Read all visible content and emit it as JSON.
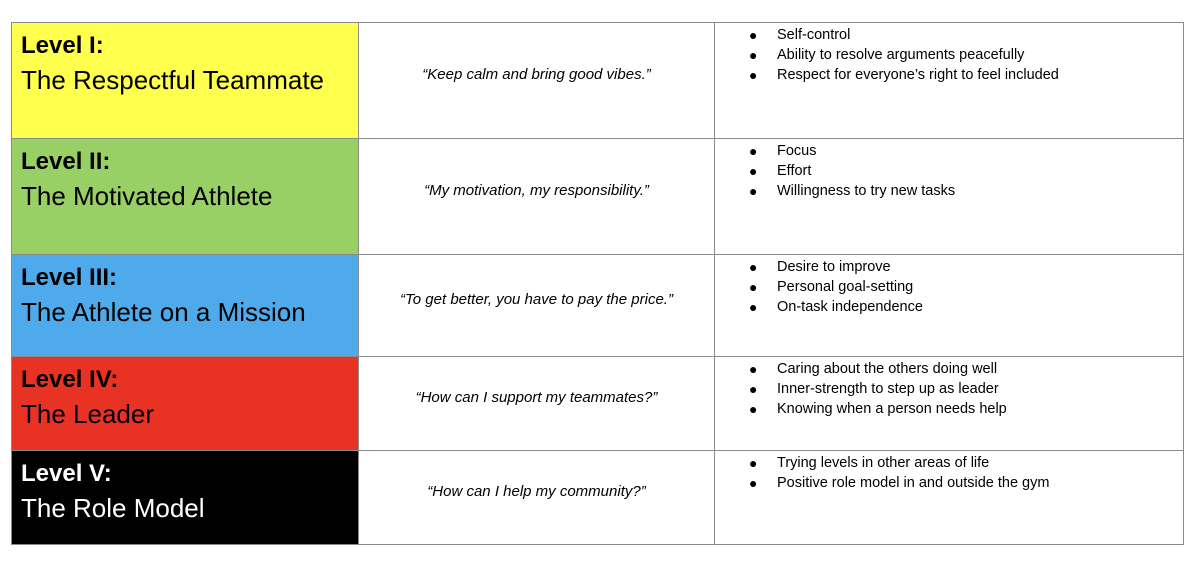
{
  "levels": [
    {
      "level": "Level I:",
      "name": "The Respectful Teammate",
      "color": "#FFFF4D",
      "motto": "“Keep calm and bring good vibes.”",
      "traits": [
        "Self-control",
        "Ability to resolve arguments peacefully",
        "Respect for everyone’s right to feel included"
      ]
    },
    {
      "level": "Level II:",
      "name": "The Motivated Athlete",
      "color": "#99D066",
      "motto": "“My motivation, my responsibility.”",
      "traits": [
        "Focus",
        "Effort",
        "Willingness to try new tasks"
      ]
    },
    {
      "level": "Level III:",
      "name": "The Athlete on a Mission",
      "color": "#4FAAEB",
      "motto": "“To get better, you have to pay the price.”",
      "traits": [
        "Desire to improve",
        "Personal goal-setting",
        "On-task independence"
      ]
    },
    {
      "level": "Level IV:",
      "name": "The Leader",
      "color": "#E83224",
      "motto": "“How can I support my teammates?”",
      "traits": [
        "Caring about the others doing well",
        "Inner-strength to step up as leader",
        "Knowing when a person needs help"
      ]
    },
    {
      "level": "Level V:",
      "name": "The Role Model",
      "color": "#000000",
      "motto": "“How can I help my community?”",
      "traits": [
        "Trying levels in other areas of life",
        "Positive role model in and outside the gym"
      ]
    }
  ]
}
